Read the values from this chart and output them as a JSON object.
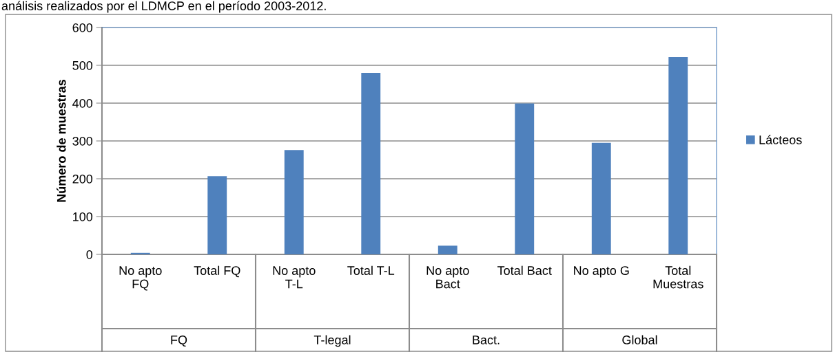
{
  "chart_data": {
    "type": "bar",
    "ylabel": "Número de muestras",
    "categories": [
      "No apto\nFQ",
      "Total FQ",
      "No apto\nT-L",
      "Total T-L",
      "No apto\nBact",
      "Total Bact",
      "No apto G",
      "Total\nMuestras"
    ],
    "series": [
      {
        "name": "Lácteos",
        "color": "#4f81bd",
        "values": [
          4,
          207,
          276,
          480,
          23,
          399,
          295,
          522
        ]
      }
    ],
    "ylim": [
      0,
      600
    ],
    "yticks": [
      0,
      100,
      200,
      300,
      400,
      500,
      600
    ],
    "grid": "y",
    "legend": "right",
    "annotations": [
      "análisis realizados por el LDMCP en el período 2003-2012.",
      "FQ",
      "T-legal",
      "Bact.",
      "Global"
    ]
  }
}
